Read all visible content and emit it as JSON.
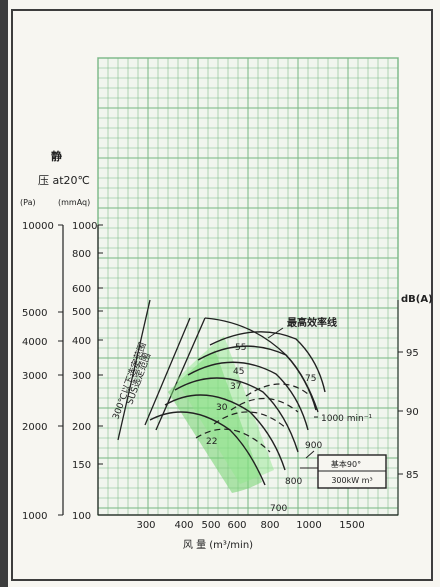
{
  "chart_data": {
    "type": "line",
    "title": "",
    "xlabel": "风 量 (m³/min)",
    "y_label_lines": [
      "静",
      "压 at20℃"
    ],
    "y_units": [
      "(Pa)",
      "(mmAq)"
    ],
    "y_right_label": "dB(A)",
    "x_ticks": [
      "300",
      "400",
      "500",
      "600",
      "800",
      "1000",
      "1500"
    ],
    "y_ticks_pa": [
      "10000",
      "5000",
      "4000",
      "3000",
      "2000",
      "1000"
    ],
    "y_ticks_mmaq": [
      "1000",
      "800",
      "600",
      "500",
      "400",
      "300",
      "200",
      "150",
      "100"
    ],
    "db_ticks": [
      "95",
      "90",
      "85"
    ],
    "annotations": {
      "max_efficiency": "最高效率线",
      "temp_range": "300℃以下选定范围",
      "sus_range": "SUS选定范围",
      "rpm": "1000 min⁻¹",
      "basic_angle": "基本90°",
      "kw": "300kW m³"
    },
    "series": [
      {
        "name": "22",
        "x": [
          300,
          420,
          560,
          700
        ],
        "y": [
          230,
          215,
          185,
          140
        ]
      },
      {
        "name": "30",
        "x": [
          340,
          470,
          620,
          760
        ],
        "y": [
          290,
          275,
          240,
          180
        ]
      },
      {
        "name": "37",
        "x": [
          380,
          510,
          660,
          800
        ],
        "y": [
          340,
          320,
          280,
          210
        ]
      },
      {
        "name": "45",
        "x": [
          420,
          540,
          700,
          860
        ],
        "y": [
          400,
          380,
          330,
          240
        ]
      },
      {
        "name": "55",
        "x": [
          450,
          580,
          740,
          900
        ],
        "y": [
          460,
          440,
          380,
          280
        ]
      },
      {
        "name": "75",
        "x": [
          500,
          650,
          850,
          1000
        ],
        "y": [
          520,
          500,
          430,
          300
        ]
      }
    ],
    "speed_labels": [
      "700",
      "800",
      "900"
    ]
  }
}
